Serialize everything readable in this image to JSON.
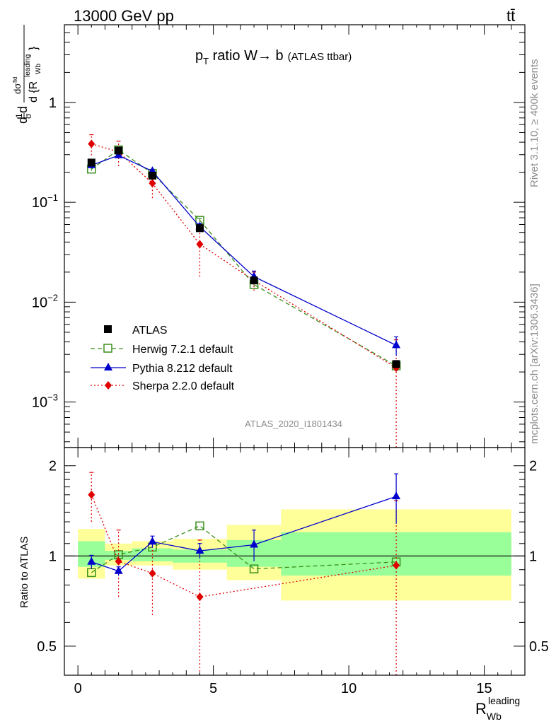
{
  "header": {
    "left_label": "13000 GeV pp",
    "right_label": "tt̄"
  },
  "watermark": {
    "rivet": "Rivet 3.1.10, ≥ 400k events",
    "mcplots": "mcplots.cern.ch [arXiv:1306.3436]",
    "analysis_id": "ATLAS_2020_I1801434"
  },
  "chart_data": [
    {
      "type": "line",
      "panel": "main",
      "title_parts": {
        "p": "p",
        "sub": "T",
        "rest": " ratio W",
        "arrow": "→",
        "b": " b",
        "small": "(ATLAS ttbar)"
      },
      "ylabel": "dσ/d{R_Wb^leading} · 1/σ",
      "xlim": [
        -0.5,
        16.5
      ],
      "ylim": [
        0.00035,
        6.0
      ],
      "yscale": "log",
      "y_tick_labels": [
        {
          "value": 1,
          "base": "1",
          "exp": ""
        },
        {
          "value": 0.1,
          "base": "10",
          "exp": "−1"
        },
        {
          "value": 0.01,
          "base": "10",
          "exp": "−2"
        },
        {
          "value": 0.001,
          "base": "10",
          "exp": "−3"
        }
      ],
      "legend_position": "bottom-left",
      "series": [
        {
          "name": "ATLAS",
          "color": "#000000",
          "marker": "square",
          "dash": "",
          "x": [
            0.5,
            1.5,
            2.75,
            4.5,
            6.5,
            11.75
          ],
          "y": [
            0.25,
            0.33,
            0.185,
            0.055,
            0.0165,
            0.0024
          ],
          "err_lo": [
            0.02,
            0.02,
            0.012,
            0.004,
            0.0012,
            0.0002
          ],
          "err_hi": [
            0.02,
            0.02,
            0.012,
            0.004,
            0.0012,
            0.0002
          ]
        },
        {
          "name": "Herwig 7.2.1 default",
          "color": "#3b8f1c",
          "marker": "open-square",
          "dash": "6,4",
          "x": [
            0.5,
            1.5,
            2.75,
            4.5,
            6.5,
            11.75
          ],
          "y": [
            0.215,
            0.335,
            0.195,
            0.066,
            0.015,
            0.0023
          ],
          "err_lo": [
            0.008,
            0.01,
            0.006,
            0.003,
            0.0008,
            0.0002
          ],
          "err_hi": [
            0.008,
            0.01,
            0.006,
            0.003,
            0.0008,
            0.0002
          ]
        },
        {
          "name": "Pythia 8.212 default",
          "color": "#0000cc",
          "marker": "triangle",
          "dash": "",
          "x": [
            0.5,
            1.5,
            2.75,
            4.5,
            6.5,
            11.75
          ],
          "y": [
            0.235,
            0.295,
            0.205,
            0.057,
            0.018,
            0.0037
          ],
          "err_lo": [
            0.01,
            0.012,
            0.008,
            0.004,
            0.0025,
            0.0008
          ],
          "err_hi": [
            0.01,
            0.012,
            0.008,
            0.004,
            0.0025,
            0.0008
          ]
        },
        {
          "name": "Sherpa 2.2.0 default",
          "color": "#e00000",
          "marker": "diamond",
          "dash": "2,3",
          "x": [
            0.5,
            1.5,
            2.75,
            4.5,
            6.5,
            11.75
          ],
          "y": [
            0.385,
            0.32,
            0.155,
            0.038,
            0.0165,
            0.0022
          ],
          "err_lo": [
            0.09,
            0.09,
            0.045,
            0.02,
            0.0035,
            0.002
          ],
          "err_hi": [
            0.09,
            0.09,
            0.045,
            0.02,
            0.0035,
            0.002
          ]
        }
      ]
    },
    {
      "type": "line",
      "panel": "ratio",
      "ylabel": "Ratio to ATLAS",
      "xlabel": "R",
      "xlabel_sub": "Wb",
      "xlabel_sup": "leading",
      "xlim": [
        -0.5,
        16.5
      ],
      "ylim": [
        0.4,
        2.3
      ],
      "yscale": "log",
      "x_tick_labels": [
        "0",
        "5",
        "10",
        "15"
      ],
      "x_tick_values": [
        0,
        5,
        10,
        15
      ],
      "y_tick_labels": [
        "0.5",
        "1",
        "2"
      ],
      "y_tick_values": [
        0.5,
        1,
        2
      ],
      "bands": [
        {
          "x0": 0.0,
          "x1": 1.0,
          "yellow": [
            0.84,
            1.23
          ],
          "green": [
            0.92,
            1.12
          ]
        },
        {
          "x0": 1.0,
          "x1": 2.0,
          "yellow": [
            0.93,
            1.1
          ],
          "green": [
            0.97,
            1.04
          ]
        },
        {
          "x0": 2.0,
          "x1": 3.5,
          "yellow": [
            0.93,
            1.12
          ],
          "green": [
            0.96,
            1.06
          ]
        },
        {
          "x0": 3.5,
          "x1": 5.5,
          "yellow": [
            0.9,
            1.14
          ],
          "green": [
            0.95,
            1.05
          ]
        },
        {
          "x0": 5.5,
          "x1": 7.5,
          "yellow": [
            0.83,
            1.27
          ],
          "green": [
            0.92,
            1.13
          ]
        },
        {
          "x0": 7.5,
          "x1": 16.0,
          "yellow": [
            0.71,
            1.43
          ],
          "green": [
            0.86,
            1.2
          ]
        }
      ],
      "series": [
        {
          "name": "Herwig 7.2.1 default",
          "color": "#3b8f1c",
          "marker": "open-square",
          "dash": "6,4",
          "x": [
            0.5,
            1.5,
            2.75,
            4.5,
            6.5,
            11.75
          ],
          "y": [
            0.88,
            1.01,
            1.07,
            1.26,
            0.905,
            0.955
          ],
          "err_lo": [
            0.0,
            0.0,
            0.0,
            0.0,
            0.0,
            0.0
          ],
          "err_hi": [
            0.0,
            0.0,
            0.0,
            0.0,
            0.0,
            0.0
          ]
        },
        {
          "name": "Pythia 8.212 default",
          "color": "#0000cc",
          "marker": "triangle",
          "dash": "",
          "x": [
            0.5,
            1.5,
            2.75,
            4.5,
            6.5,
            11.75
          ],
          "y": [
            0.955,
            0.89,
            1.115,
            1.04,
            1.09,
            1.58
          ],
          "err_lo": [
            0.05,
            0.03,
            0.05,
            0.06,
            0.13,
            0.3
          ],
          "err_hi": [
            0.05,
            0.03,
            0.05,
            0.06,
            0.13,
            0.3
          ]
        },
        {
          "name": "Sherpa 2.2.0 default",
          "color": "#e00000",
          "marker": "diamond",
          "dash": "2,3",
          "x": [
            0.5,
            1.5,
            2.75,
            4.5,
            6.5,
            11.75
          ],
          "y": [
            1.6,
            0.96,
            0.875,
            0.73,
            0.0,
            0.93
          ],
          "err_lo": [
            0.3,
            0.23,
            0.24,
            0.4,
            0.0,
            0.6
          ],
          "err_hi": [
            0.3,
            0.26,
            0.25,
            0.4,
            0.0,
            0.6
          ]
        }
      ]
    }
  ],
  "legend": [
    {
      "label": "ATLAS"
    },
    {
      "label": "Herwig 7.2.1 default"
    },
    {
      "label": "Pythia 8.212 default"
    },
    {
      "label": "Sherpa 2.2.0 default"
    }
  ]
}
